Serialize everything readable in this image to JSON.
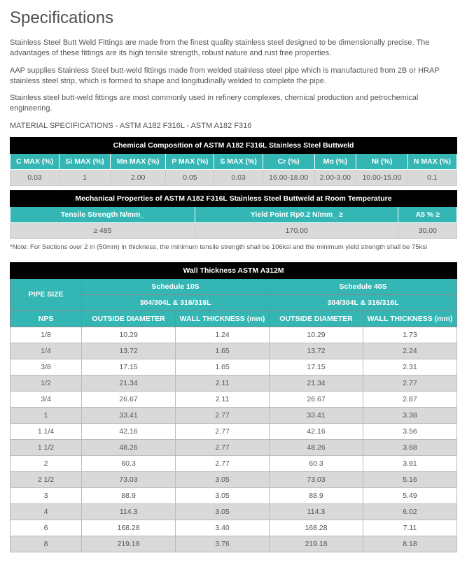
{
  "title": "Specifications",
  "para1": "Stainless Steel Butt Weld Fittings are made from the finest quality stainless steel designed to be dimensionally precise. The advantages of these fittings are its high tensile strength, robust nature and rust free properties.",
  "para2": "AAP supplies Stainless Steel butt-weld fittings made from welded stainless steel pipe which is manufactured from 2B or HRAP stainless steel strip, which is formed to shape and longitudinally welded to complete the pipe.",
  "para3": "Stainless steel butt-weld fittings are most commonly used in refinery complexes, chemical production and petrochemical engineering.",
  "matspec": "MATERIAL SPECIFICATIONS - ASTM A182 F316L - ASTM A182 F316",
  "t1": {
    "title": "Chemical Composition of ASTM A182 F316L Stainless Steel Buttweld",
    "headers": [
      "C MAX (%)",
      "Si MAX (%)",
      "Mn MAX (%)",
      "P MAX (%)",
      "S MAX (%)",
      "Cr (%)",
      "Mo (%)",
      "Ni (%)",
      "N MAX (%)"
    ],
    "row": [
      "0.03",
      "1",
      "2.00",
      "0.05",
      "0.03",
      "16.00-18.00",
      "2.00-3.00",
      "10.00-15.00",
      "0.1"
    ]
  },
  "t2": {
    "title": "Mechanical Properties of  ASTM A182 F316L Stainless Steel Buttweld at Room Temperature",
    "headers": [
      "Tensile Strength N/mm_",
      "Yield Point Rp0.2  N/mm_ ≥",
      "A5 % ≥"
    ],
    "row": [
      "≥ 485",
      "170.00",
      "30.00"
    ]
  },
  "note": "*Note: For Sections over 2 in (50mm) in thickness, the minimum tensile strength shall be 106ksi and the minimum yield strength shall be 75ksi",
  "t3": {
    "title": "Wall Thickness ASTM A312M",
    "pipesize": "PIPE SIZE",
    "sched10": "Schedule 10S",
    "sched40": "Schedule 40S",
    "grade": "304/304L & 316/316L",
    "nps": "NPS",
    "od": "OUTSIDE DIAMETER",
    "wt_mm": "WALL THICKNESS (mm)",
    "wt": "WALL THICKNESS (mm)",
    "rows": [
      [
        "1/8",
        "10.29",
        "1.24",
        "10.29",
        "1.73"
      ],
      [
        "1/4",
        "13.72",
        "1.65",
        "13.72",
        "2.24"
      ],
      [
        "3/8",
        "17.15",
        "1.65",
        "17.15",
        "2.31"
      ],
      [
        "1/2",
        "21.34",
        "2.11",
        "21.34",
        "2.77"
      ],
      [
        "3/4",
        "26.67",
        "2.11",
        "26.67",
        "2.87"
      ],
      [
        "1",
        "33.41",
        "2.77",
        "33.41",
        "3.38"
      ],
      [
        "1 1/4",
        "42.16",
        "2.77",
        "42.16",
        "3.56"
      ],
      [
        "1 1/2",
        "48.26",
        "2.77",
        "48.26",
        "3.68"
      ],
      [
        "2",
        "60.3",
        "2.77",
        "60.3",
        "3.91"
      ],
      [
        "2 1/2",
        "73.03",
        "3.05",
        "73.03",
        "5.16"
      ],
      [
        "3",
        "88.9",
        "3.05",
        "88.9",
        "5.49"
      ],
      [
        "4",
        "114.3",
        "3.05",
        "114.3",
        "6.02"
      ],
      [
        "6",
        "168.28",
        "3.40",
        "168.28",
        "7.11"
      ],
      [
        "8",
        "219.18",
        "3.76",
        "219.18",
        "8.18"
      ]
    ]
  }
}
